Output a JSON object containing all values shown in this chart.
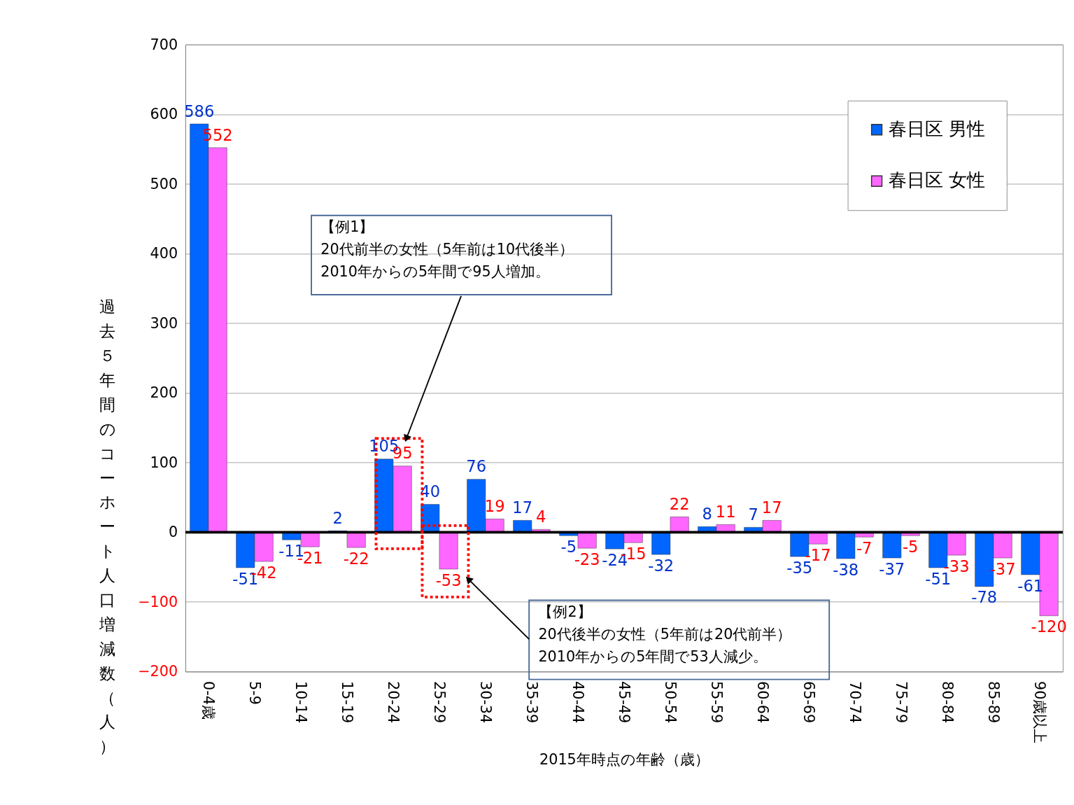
{
  "chart_data": {
    "type": "bar",
    "xlabel": "2015年時点の年齢（歳）",
    "ylabel": "過去５年間のコーホート人口増減数（人）",
    "categories": [
      "0-4歳",
      "5-9",
      "10-14",
      "15-19",
      "20-24",
      "25-29",
      "30-34",
      "35-39",
      "40-44",
      "45-49",
      "50-54",
      "55-59",
      "60-64",
      "65-69",
      "70-74",
      "75-79",
      "80-84",
      "85-89",
      "90歳以上"
    ],
    "series": [
      {
        "name": "春日区 男性",
        "color": "#0066ff",
        "values": [
          586,
          -51,
          -11,
          2,
          105,
          40,
          76,
          17,
          -5,
          -24,
          -32,
          8,
          7,
          -35,
          -38,
          -37,
          -51,
          -78,
          -61
        ]
      },
      {
        "name": "春日区 女性",
        "color": "#ff66ff",
        "values": [
          552,
          -42,
          -21,
          -22,
          95,
          -53,
          19,
          4,
          -23,
          -15,
          22,
          11,
          17,
          -17,
          -7,
          -5,
          -33,
          -37,
          -120
        ]
      }
    ],
    "ylim": [
      -200,
      700
    ],
    "yticks": [
      -200,
      -100,
      0,
      100,
      200,
      300,
      400,
      500,
      600,
      700
    ],
    "grid": "y",
    "legend": "top right",
    "data_labels": true,
    "annotations": [
      "【例1】\n20代前半の女性（5年前は10代後半）\n2010年からの5年間で95人増加。",
      "【例2】\n20代後半の女性（5年前は20代前半）\n2010年からの5年間で53人減少。"
    ]
  }
}
